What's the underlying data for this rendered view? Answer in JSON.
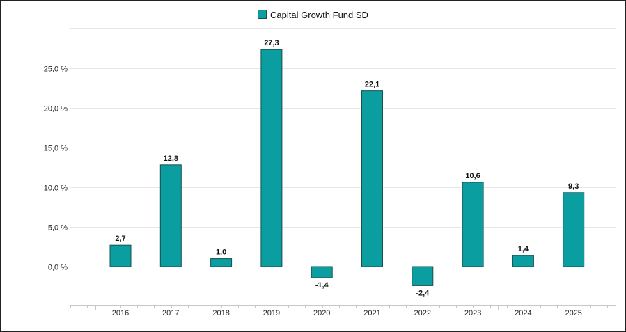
{
  "chart_data": {
    "type": "bar",
    "categories": [
      "2016",
      "2017",
      "2018",
      "2019",
      "2020",
      "2021",
      "2022",
      "2023",
      "2024",
      "2025"
    ],
    "series": [
      {
        "name": "Capital Growth Fund SD",
        "values": [
          2.7,
          12.8,
          1.0,
          27.3,
          -1.4,
          22.1,
          -2.4,
          10.6,
          1.4,
          9.3
        ],
        "value_labels": [
          "2,7",
          "12,8",
          "1,0",
          "27,3",
          "-1,4",
          "22,1",
          "-2,4",
          "10,6",
          "1,4",
          "9,3"
        ]
      }
    ],
    "y_ticks": [
      0,
      5,
      10,
      15,
      20,
      25
    ],
    "y_tick_labels": [
      "0,0 %",
      "5,0 %",
      "10,0 %",
      "15,0 %",
      "20,0 %",
      "25,0 %"
    ],
    "ylim": [
      -5,
      30
    ],
    "grid": true,
    "legend_position": "top-center",
    "colors": {
      "bar": "#0b9ea1",
      "bar_stroke": "#1b4f50",
      "grid": "#e6e6e6",
      "axis": "#c8c8c8"
    }
  }
}
